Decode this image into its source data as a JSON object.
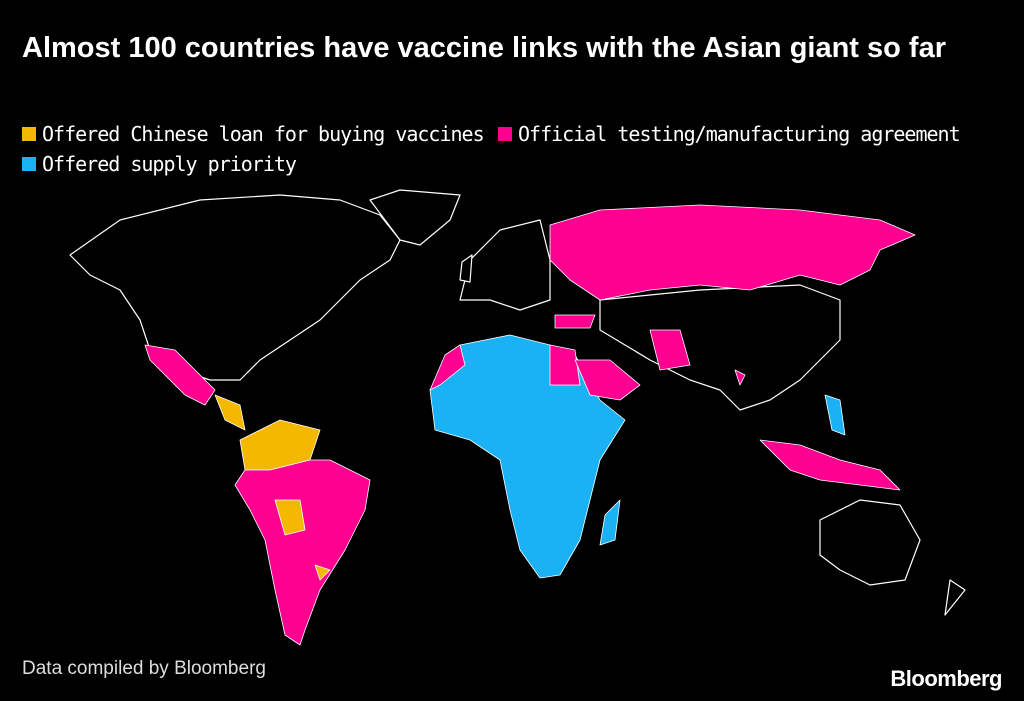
{
  "title": "Almost 100 countries have vaccine links with the Asian giant so far",
  "legend": [
    {
      "label": "Offered Chinese loan for buying vaccines",
      "color": "#f5b800"
    },
    {
      "label": "Official testing/manufacturing agreement",
      "color": "#ff0090"
    },
    {
      "label": "Offered supply priority",
      "color": "#1ab2f5"
    }
  ],
  "source": "Data compiled by Bloomberg",
  "brand": "Bloomberg"
}
